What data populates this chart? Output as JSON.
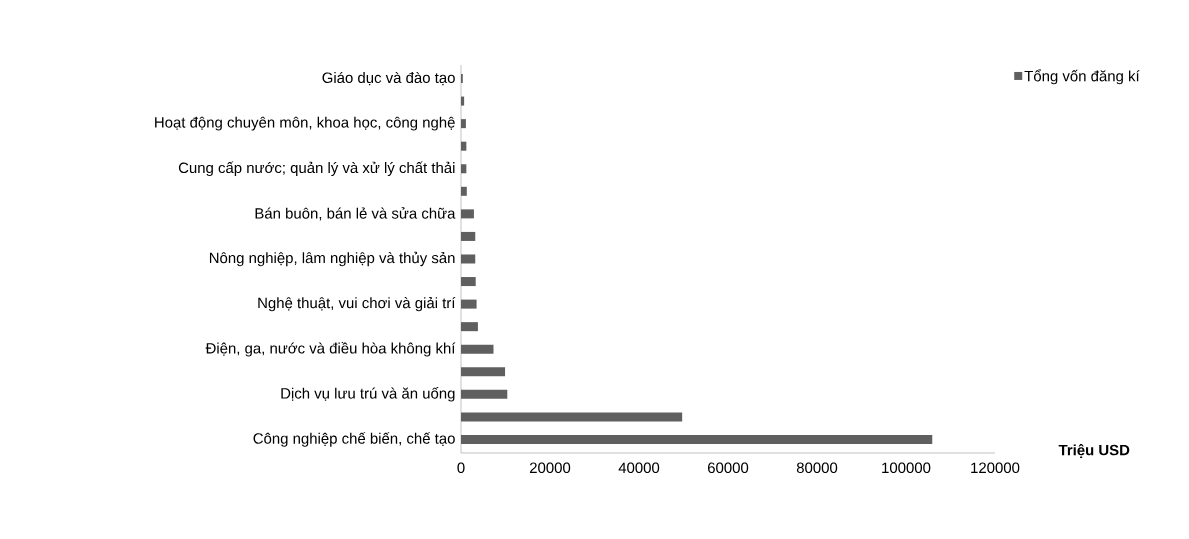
{
  "chart_data": {
    "type": "bar",
    "orientation": "horizontal",
    "categories": [
      "Giáo dục và đào tạo",
      null,
      "Hoạt động chuyên môn, khoa học, công nghệ",
      null,
      "Cung cấp nước; quản lý và xử lý chất thải",
      null,
      "Bán buôn, bán lẻ và sửa chữa",
      null,
      "Nông nghiệp, lâm nghiệp và thủy sản",
      null,
      "Nghệ thuật, vui chơi và giải trí",
      null,
      "Điện, ga, nước và điều hòa không khí",
      null,
      "Dịch vụ lưu trú và ăn uống",
      null,
      "Công nghiệp chế biến, chế tạo"
    ],
    "series": [
      {
        "name": "Tổng vốn đăng kí",
        "color": "#5f5f5f",
        "values": [
          400,
          700,
          1100,
          1200,
          1200,
          1300,
          2900,
          3200,
          3200,
          3300,
          3500,
          3800,
          7300,
          9900,
          10400,
          49700,
          105900
        ]
      }
    ],
    "xlabel": "Triệu USD",
    "xlim": [
      0,
      120000
    ],
    "xticks": [
      0,
      20000,
      40000,
      60000,
      80000,
      100000,
      120000
    ],
    "grid": false,
    "legend": "top right"
  }
}
